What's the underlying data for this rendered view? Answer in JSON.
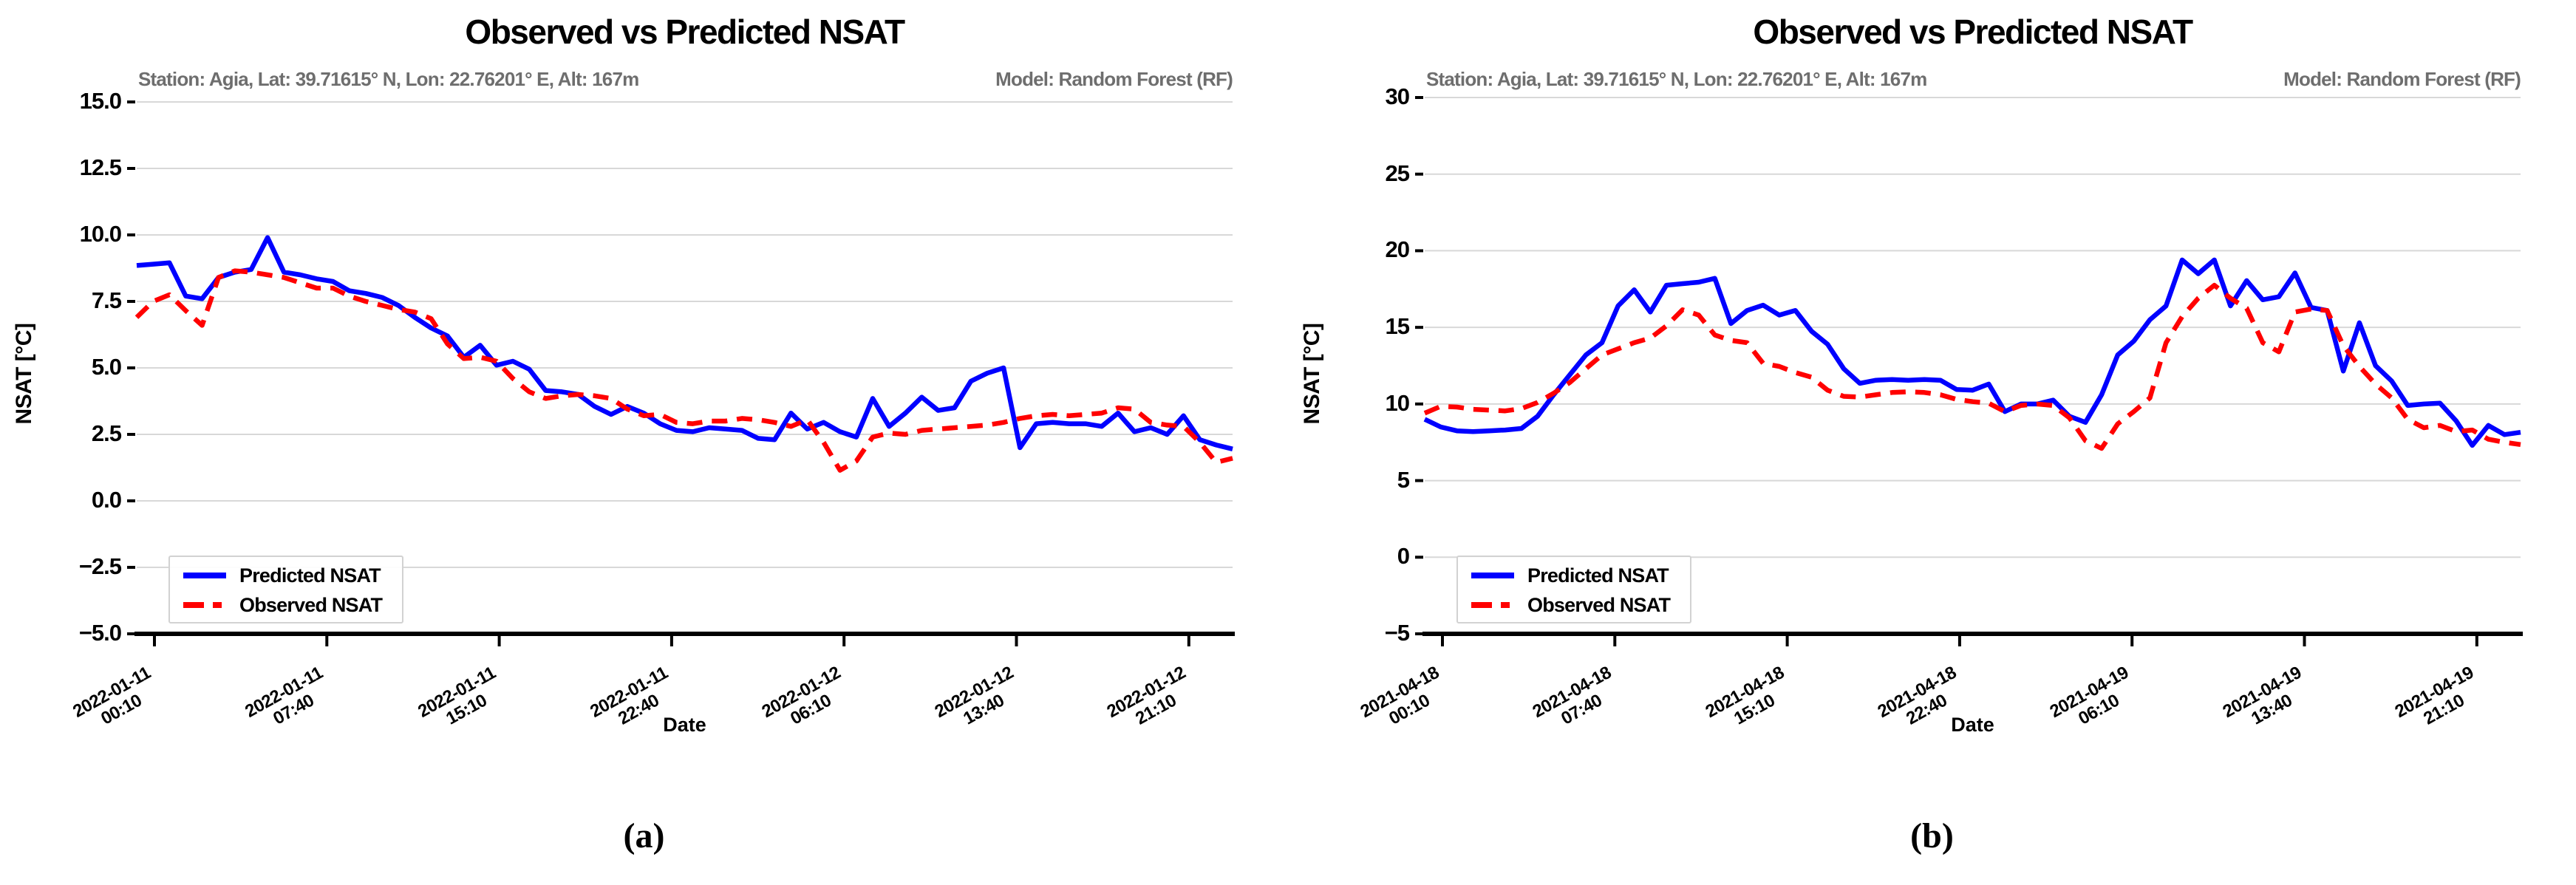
{
  "figure": {
    "background": "#ffffff"
  },
  "colors": {
    "predicted": "#0000ff",
    "observed": "#ff0000",
    "grid": "#d8d8d8",
    "spine": "#000000",
    "subtitle_gray": "#6e6e6e"
  },
  "chart_data": [
    {
      "id": "a",
      "type": "line",
      "panel_label": "(a)",
      "title": "Observed vs Predicted NSAT",
      "subtitle_left": "Station: Agia, Lat: 39.71615° N, Lon: 22.76201° E, Alt: 167m",
      "subtitle_right": "Model: Random Forest (RF)",
      "xlabel": "Date",
      "ylabel": "NSAT [°C]",
      "ylim": [
        -5,
        15
      ],
      "grid": true,
      "yticks": [
        {
          "v": 15,
          "label": "15.0"
        },
        {
          "v": 12.5,
          "label": "12.5"
        },
        {
          "v": 10,
          "label": "10.0"
        },
        {
          "v": 7.5,
          "label": "7.5"
        },
        {
          "v": 5,
          "label": "5.0"
        },
        {
          "v": 2.5,
          "label": "2.5"
        },
        {
          "v": 0,
          "label": "0.0"
        },
        {
          "v": -2.5,
          "label": "−2.5"
        },
        {
          "v": -5,
          "label": "−5.0"
        }
      ],
      "x_ticks": [
        {
          "date": "2022-01-11",
          "time": "00:10"
        },
        {
          "date": "2022-01-11",
          "time": "07:40"
        },
        {
          "date": "2022-01-11",
          "time": "15:10"
        },
        {
          "date": "2022-01-11",
          "time": "22:40"
        },
        {
          "date": "2022-01-12",
          "time": "06:10"
        },
        {
          "date": "2022-01-12",
          "time": "13:40"
        },
        {
          "date": "2022-01-12",
          "time": "21:10"
        }
      ],
      "legend": {
        "position": "lower left",
        "entries": [
          "Predicted NSAT",
          "Observed NSAT"
        ]
      },
      "series": [
        {
          "name": "Predicted NSAT",
          "color": "#0000ff",
          "dashed": false,
          "values": [
            8.85,
            8.9,
            8.95,
            7.7,
            7.6,
            8.4,
            8.6,
            8.7,
            9.9,
            8.6,
            8.5,
            8.35,
            8.25,
            7.9,
            7.8,
            7.65,
            7.35,
            6.9,
            6.5,
            6.2,
            5.4,
            5.85,
            5.1,
            5.25,
            4.95,
            4.15,
            4.1,
            4.0,
            3.55,
            3.25,
            3.55,
            3.3,
            2.9,
            2.65,
            2.6,
            2.75,
            2.7,
            2.65,
            2.35,
            2.3,
            3.3,
            2.7,
            2.95,
            2.6,
            2.4,
            3.85,
            2.8,
            3.3,
            3.9,
            3.4,
            3.5,
            4.5,
            4.8,
            5.0,
            2.0,
            2.9,
            2.95,
            2.9,
            2.9,
            2.8,
            3.3,
            2.6,
            2.75,
            2.5,
            3.2,
            2.3,
            2.1,
            1.95
          ]
        },
        {
          "name": "Observed NSAT",
          "color": "#ff0000",
          "dashed": true,
          "values": [
            6.9,
            7.5,
            7.75,
            7.15,
            6.6,
            8.4,
            8.65,
            8.6,
            8.5,
            8.4,
            8.2,
            8.0,
            8.0,
            7.7,
            7.5,
            7.35,
            7.2,
            7.1,
            6.85,
            5.9,
            5.35,
            5.4,
            5.25,
            4.6,
            4.1,
            3.85,
            3.95,
            4.0,
            3.95,
            3.85,
            3.45,
            3.2,
            3.25,
            2.95,
            2.9,
            3.0,
            3.0,
            3.1,
            3.05,
            2.95,
            2.8,
            3.05,
            2.2,
            1.15,
            1.5,
            2.4,
            2.55,
            2.5,
            2.65,
            2.7,
            2.75,
            2.8,
            2.85,
            2.95,
            3.1,
            3.2,
            3.25,
            3.2,
            3.25,
            3.3,
            3.5,
            3.45,
            2.95,
            2.85,
            2.8,
            2.2,
            1.45,
            1.6
          ]
        }
      ]
    },
    {
      "id": "b",
      "type": "line",
      "panel_label": "(b)",
      "title": "Observed vs Predicted NSAT",
      "subtitle_left": "Station: Agia, Lat: 39.71615° N, Lon: 22.76201° E, Alt: 167m",
      "subtitle_right": "Model: Random Forest (RF)",
      "xlabel": "Date",
      "ylabel": "NSAT [°C]",
      "ylim": [
        -5,
        30
      ],
      "grid": true,
      "yticks": [
        {
          "v": 30,
          "label": "30"
        },
        {
          "v": 25,
          "label": "25"
        },
        {
          "v": 20,
          "label": "20"
        },
        {
          "v": 15,
          "label": "15"
        },
        {
          "v": 10,
          "label": "10"
        },
        {
          "v": 5,
          "label": "5"
        },
        {
          "v": 0,
          "label": "0"
        },
        {
          "v": -5,
          "label": "−5"
        }
      ],
      "x_ticks": [
        {
          "date": "2021-04-18",
          "time": "00:10"
        },
        {
          "date": "2021-04-18",
          "time": "07:40"
        },
        {
          "date": "2021-04-18",
          "time": "15:10"
        },
        {
          "date": "2021-04-18",
          "time": "22:40"
        },
        {
          "date": "2021-04-19",
          "time": "06:10"
        },
        {
          "date": "2021-04-19",
          "time": "13:40"
        },
        {
          "date": "2021-04-19",
          "time": "21:10"
        }
      ],
      "legend": {
        "position": "lower left",
        "entries": [
          "Predicted NSAT",
          "Observed NSAT"
        ]
      },
      "series": [
        {
          "name": "Predicted NSAT",
          "color": "#0000ff",
          "dashed": false,
          "values": [
            9.0,
            8.5,
            8.25,
            8.2,
            8.25,
            8.3,
            8.4,
            9.2,
            10.6,
            11.9,
            13.2,
            14.0,
            16.4,
            17.45,
            16.0,
            17.75,
            17.85,
            17.95,
            18.2,
            15.25,
            16.1,
            16.45,
            15.8,
            16.1,
            14.75,
            13.9,
            12.3,
            11.35,
            11.55,
            11.6,
            11.55,
            11.6,
            11.55,
            10.95,
            10.9,
            11.3,
            9.5,
            10.0,
            10.0,
            10.25,
            9.2,
            8.8,
            10.6,
            13.2,
            14.1,
            15.5,
            16.4,
            19.4,
            18.5,
            19.4,
            16.4,
            18.05,
            16.8,
            17.0,
            18.55,
            16.3,
            16.1,
            12.15,
            15.3,
            12.5,
            11.5,
            9.9,
            10.0,
            10.05,
            8.9,
            7.3,
            8.6,
            8.0,
            8.15
          ]
        },
        {
          "name": "Observed NSAT",
          "color": "#ff0000",
          "dashed": true,
          "values": [
            9.4,
            9.85,
            9.8,
            9.65,
            9.6,
            9.55,
            9.7,
            10.1,
            10.7,
            11.4,
            12.3,
            13.2,
            13.6,
            14.0,
            14.3,
            15.1,
            16.15,
            15.8,
            14.5,
            14.15,
            14.0,
            12.65,
            12.45,
            12.05,
            11.75,
            10.9,
            10.5,
            10.45,
            10.6,
            10.75,
            10.8,
            10.75,
            10.6,
            10.3,
            10.15,
            10.05,
            9.5,
            9.9,
            10.0,
            9.9,
            9.1,
            7.6,
            7.1,
            8.7,
            9.5,
            10.4,
            14.0,
            15.7,
            16.9,
            17.75,
            16.9,
            16.25,
            14.0,
            13.4,
            16.0,
            16.2,
            16.1,
            13.8,
            12.45,
            11.3,
            10.4,
            9.0,
            8.45,
            8.6,
            8.2,
            8.3,
            7.7,
            7.5,
            7.35
          ]
        }
      ]
    }
  ]
}
